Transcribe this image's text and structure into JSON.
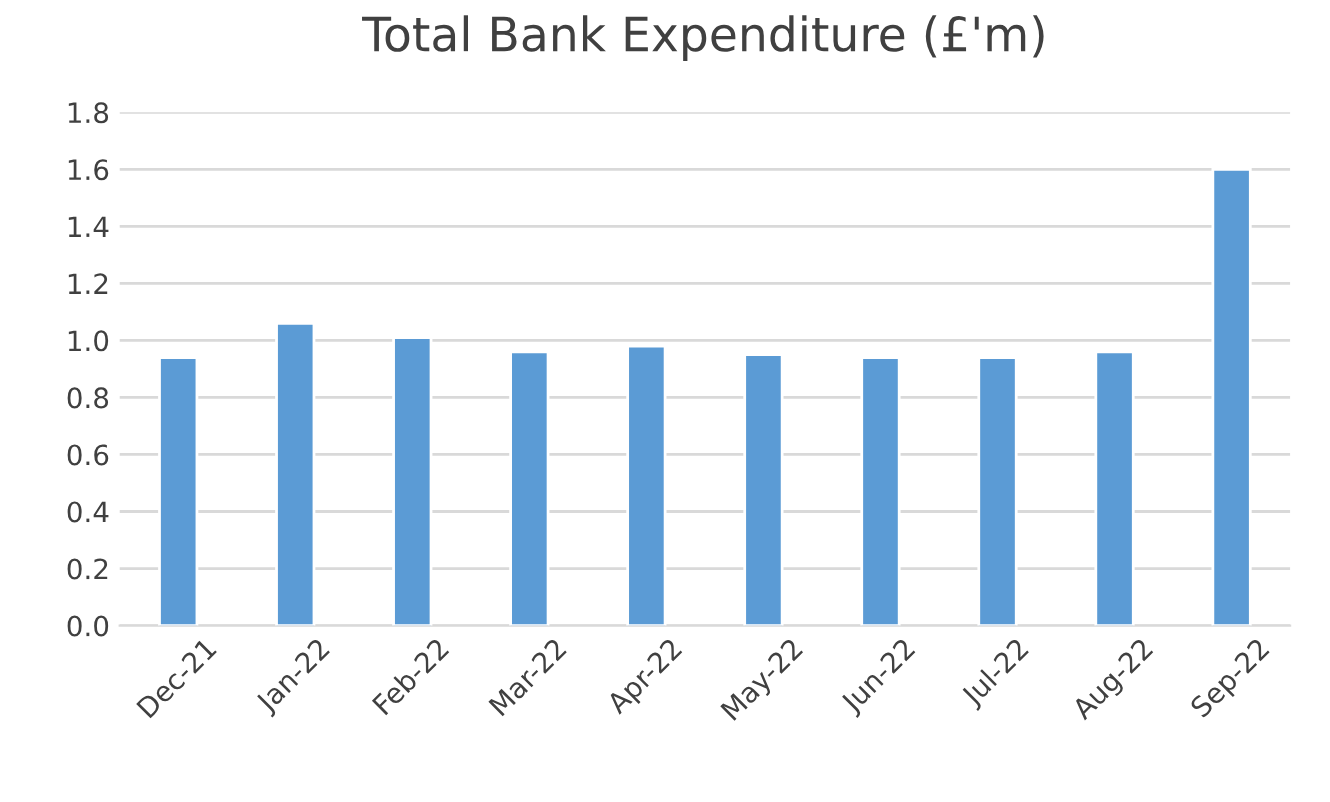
{
  "chart_data": {
    "type": "bar",
    "title": "Total Bank Expenditure (£'m)",
    "categories": [
      "Dec-21",
      "Jan-22",
      "Feb-22",
      "Mar-22",
      "Apr-22",
      "May-22",
      "Jun-22",
      "Jul-22",
      "Aug-22",
      "Sep-22"
    ],
    "values": [
      0.94,
      1.06,
      1.01,
      0.96,
      0.98,
      0.95,
      0.94,
      0.94,
      0.96,
      1.6
    ],
    "color": "#5b9bd5",
    "ylim": [
      0,
      1.8
    ],
    "yticks": [
      {
        "value": 0,
        "label": "0.0"
      },
      {
        "value": 0.2,
        "label": "0.2"
      },
      {
        "value": 0.4,
        "label": "0.4"
      },
      {
        "value": 0.6,
        "label": "0.6"
      },
      {
        "value": 0.8,
        "label": "0.8"
      },
      {
        "value": 1.0,
        "label": "1.0"
      },
      {
        "value": 1.2,
        "label": "1.2"
      },
      {
        "value": 1.4,
        "label": "1.4"
      },
      {
        "value": 1.6,
        "label": "1.6"
      },
      {
        "value": 1.8,
        "label": "1.8"
      }
    ],
    "grid": "y"
  }
}
